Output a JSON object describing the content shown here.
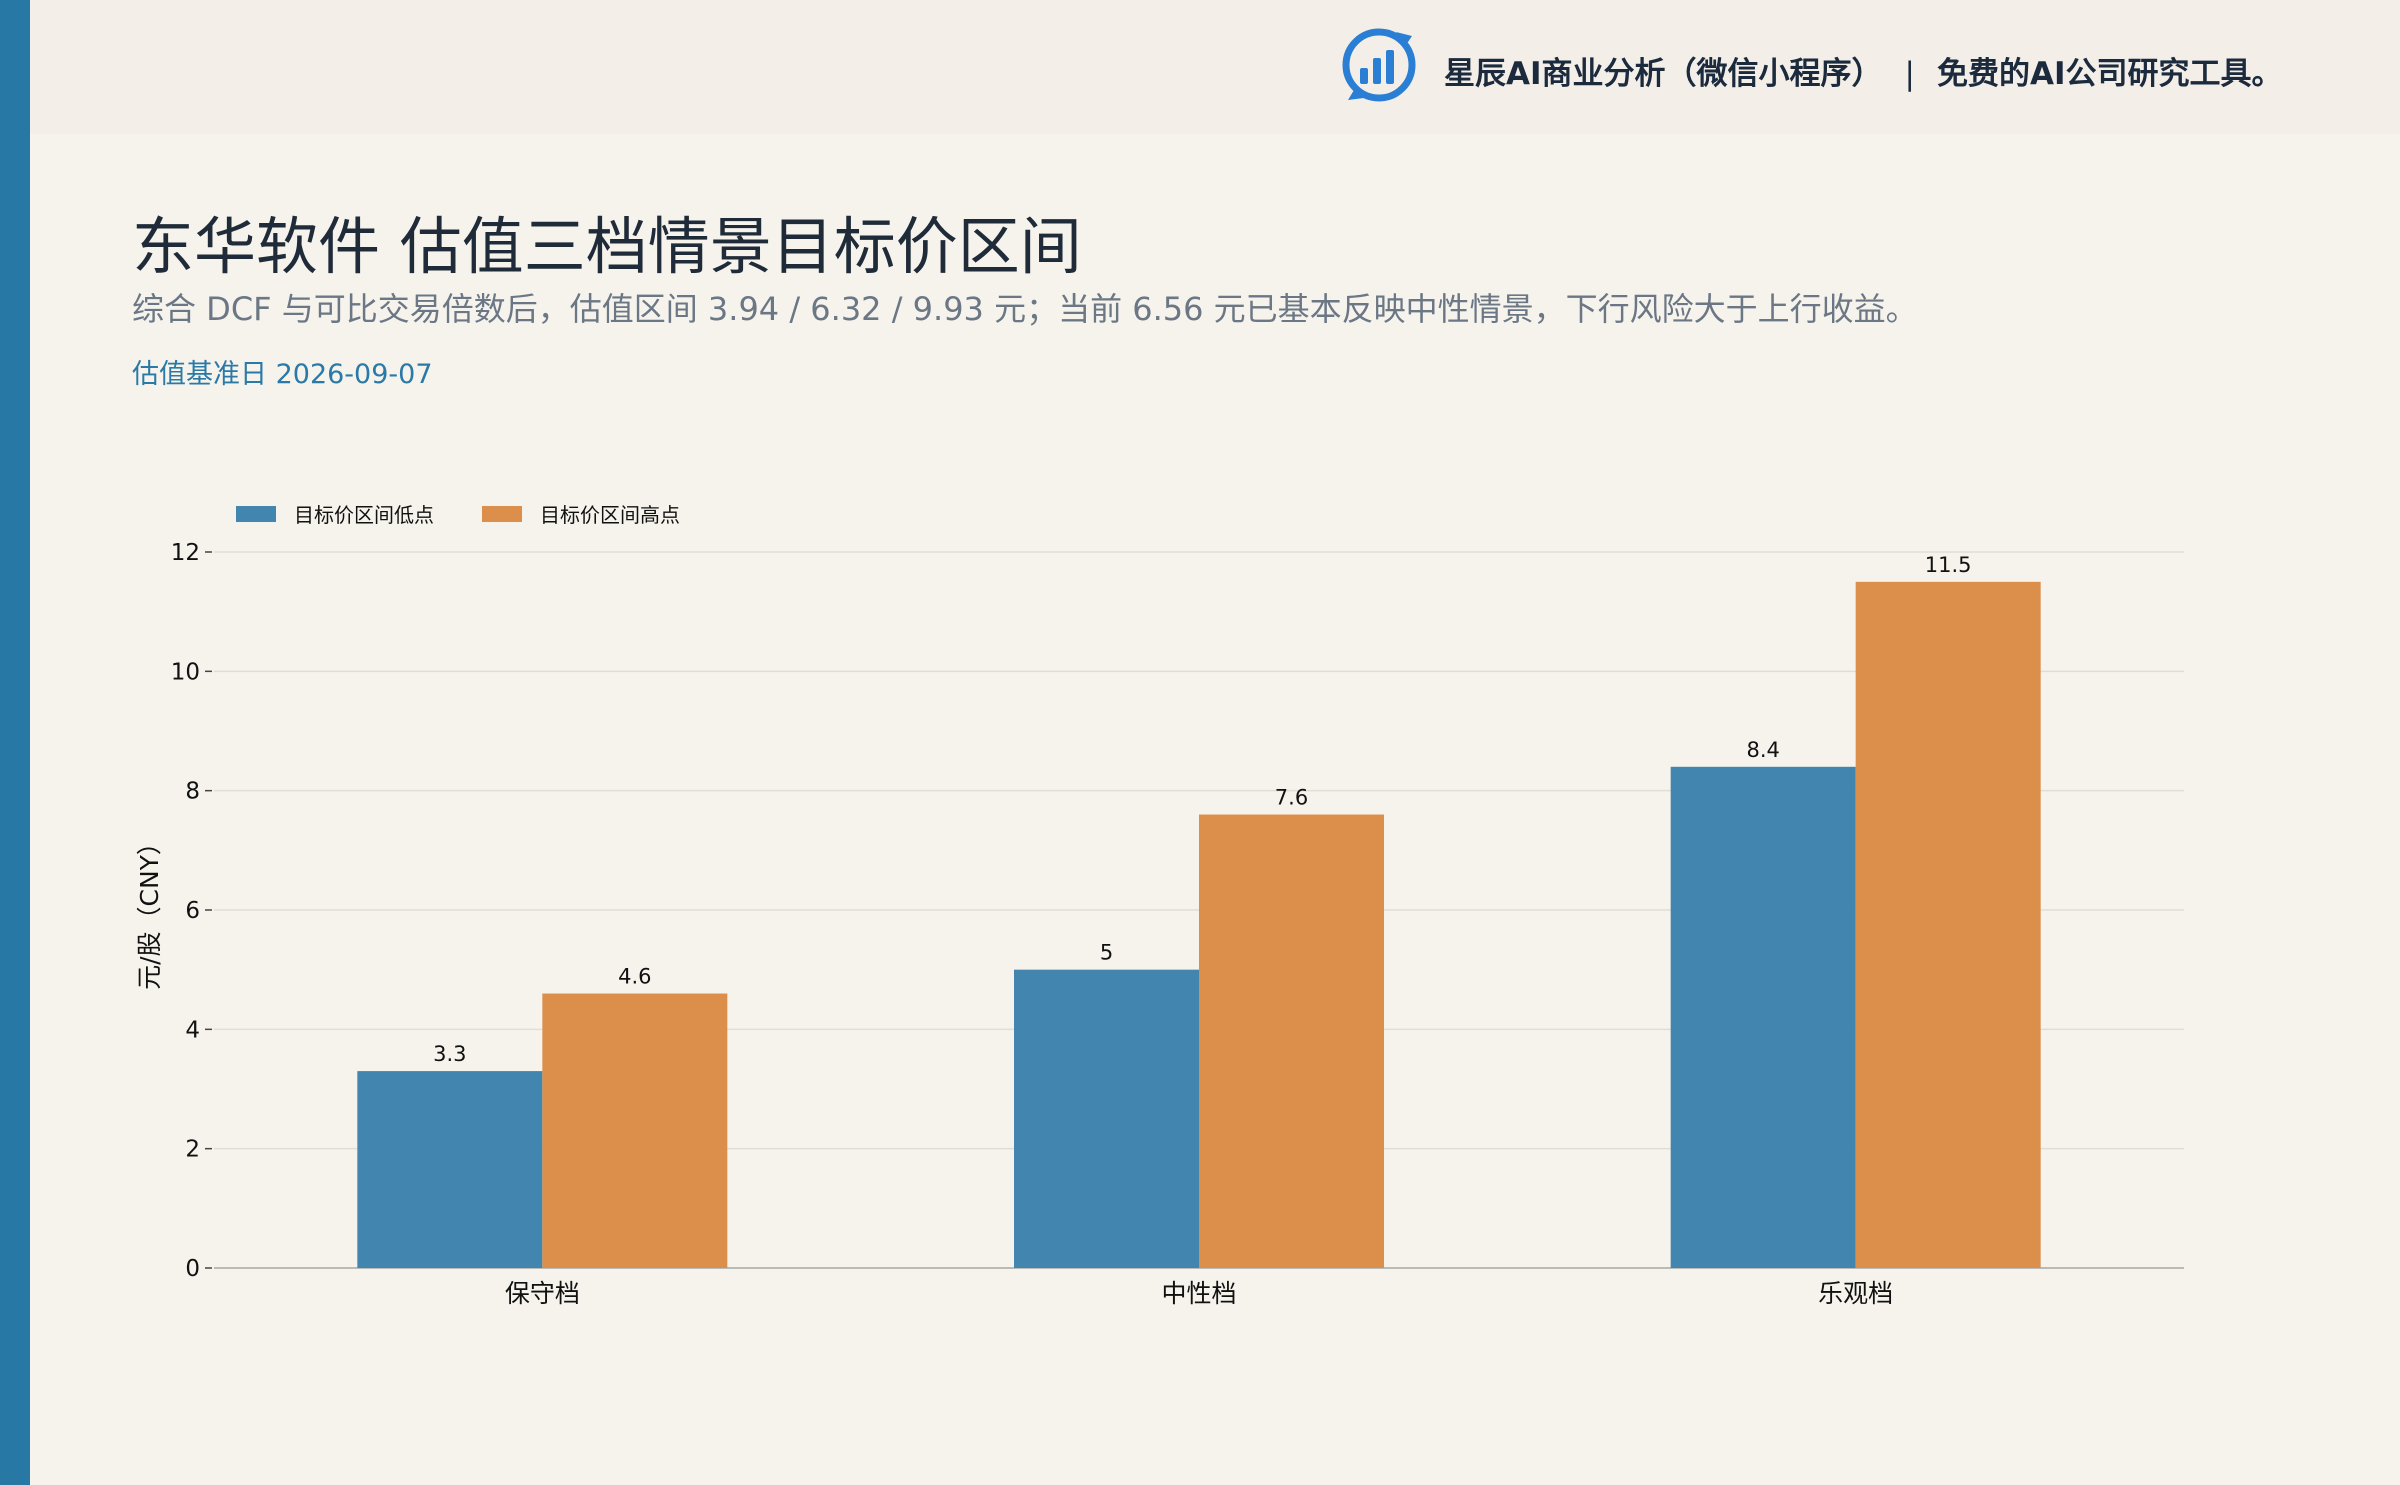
{
  "brand": {
    "name": "星辰AI商业分析（微信小程序）",
    "separator": "|",
    "tagline": "免费的AI公司研究工具。",
    "logo_icon": "bar-chart-cycle-icon",
    "accent_color": "#2a7fd4"
  },
  "header": {
    "title": "东华软件 估值三档情景目标价区间",
    "subtitle": "综合 DCF 与可比交易倍数后，估值区间 3.94 / 6.32 / 9.93 元；当前 6.56 元已基本反映中性情景，下行风险大于上行收益。",
    "date_line": "估值基准日 2026-09-07"
  },
  "chart_data": {
    "type": "bar",
    "categories": [
      "保守档",
      "中性档",
      "乐观档"
    ],
    "series": [
      {
        "name": "目标价区间低点",
        "values": [
          3.3,
          5,
          8.4
        ],
        "labels": [
          "3.3",
          "5",
          "8.4"
        ],
        "color": "#4286b0"
      },
      {
        "name": "目标价区间高点",
        "values": [
          4.6,
          7.6,
          11.5
        ],
        "labels": [
          "4.6",
          "7.6",
          "11.5"
        ],
        "color": "#dc8f4b"
      }
    ],
    "ylabel": "元/股（CNY）",
    "xlabel": "",
    "ylim": [
      0,
      12
    ],
    "yticks": [
      0,
      2,
      4,
      6,
      8,
      10,
      12
    ],
    "grid": true,
    "legend_position": "top-left"
  }
}
